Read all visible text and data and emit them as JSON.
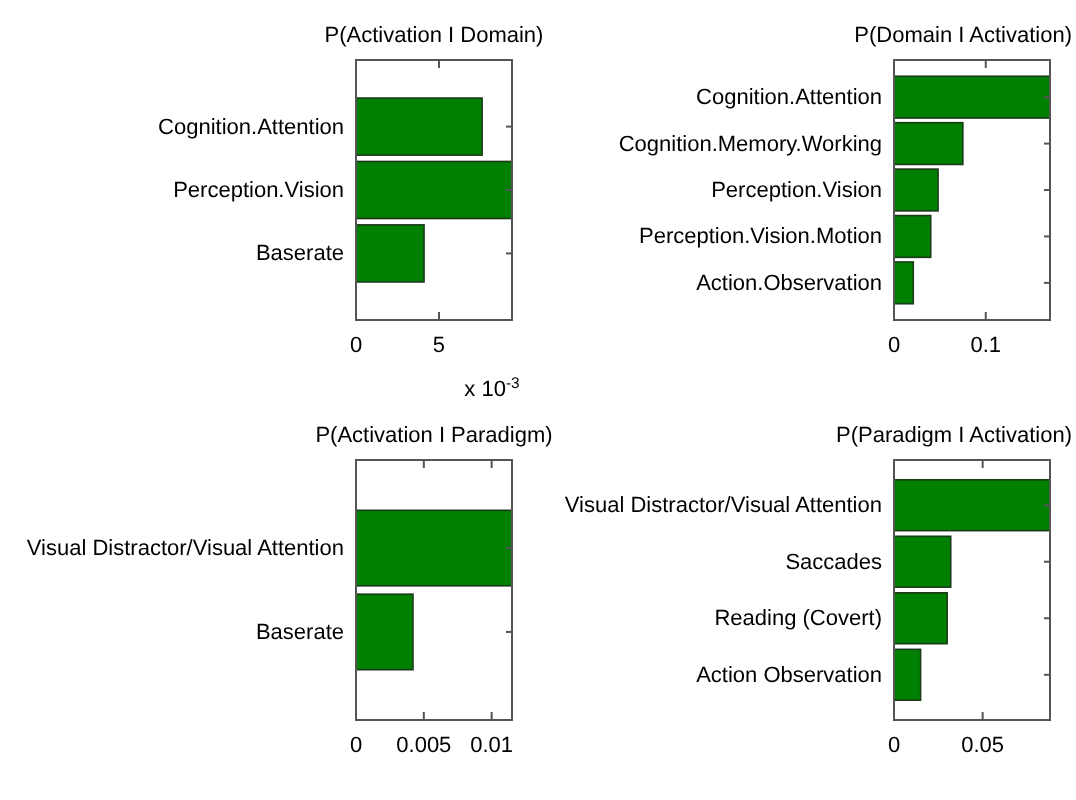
{
  "chart_data": [
    {
      "type": "bar",
      "orientation": "horizontal",
      "title": "P(Activation I Domain)",
      "categories": [
        "Cognition.Attention",
        "Perception.Vision",
        "Baserate"
      ],
      "values": [
        7.6,
        9.4,
        4.1
      ],
      "color": "#008000",
      "xlim": [
        0,
        9.4
      ],
      "xticks": [
        0,
        5
      ],
      "annotations": [
        "x 10$^{-3}$"
      ],
      "grid": false
    },
    {
      "type": "bar",
      "orientation": "horizontal",
      "title": "P(Domain I Activation)",
      "categories": [
        "Cognition.Attention",
        "Cognition.Memory.Working",
        "Perception.Vision",
        "Perception.Vision.Motion",
        "Action.Observation"
      ],
      "values": [
        0.17,
        0.075,
        0.048,
        0.04,
        0.021
      ],
      "color": "#008000",
      "xlim": [
        0,
        0.17
      ],
      "xticks": [
        0,
        0.1
      ],
      "grid": false
    },
    {
      "type": "bar",
      "orientation": "horizontal",
      "title": "P(Activation I Paradigm)",
      "categories": [
        "Visual Distractor/Visual Attention",
        "Baserate"
      ],
      "values": [
        0.0115,
        0.0042
      ],
      "color": "#008000",
      "xlim": [
        0,
        0.0115
      ],
      "xticks": [
        0,
        0.005,
        0.01
      ],
      "grid": false
    },
    {
      "type": "bar",
      "orientation": "horizontal",
      "title": "P(Paradigm I Activation)",
      "categories": [
        "Visual Distractor/Visual Attention",
        "Saccades",
        "Reading (Covert)",
        "Action Observation"
      ],
      "values": [
        0.088,
        0.032,
        0.03,
        0.015
      ],
      "color": "#008000",
      "xlim": [
        0,
        0.088
      ],
      "xticks": [
        0,
        0.05
      ],
      "grid": false
    }
  ]
}
